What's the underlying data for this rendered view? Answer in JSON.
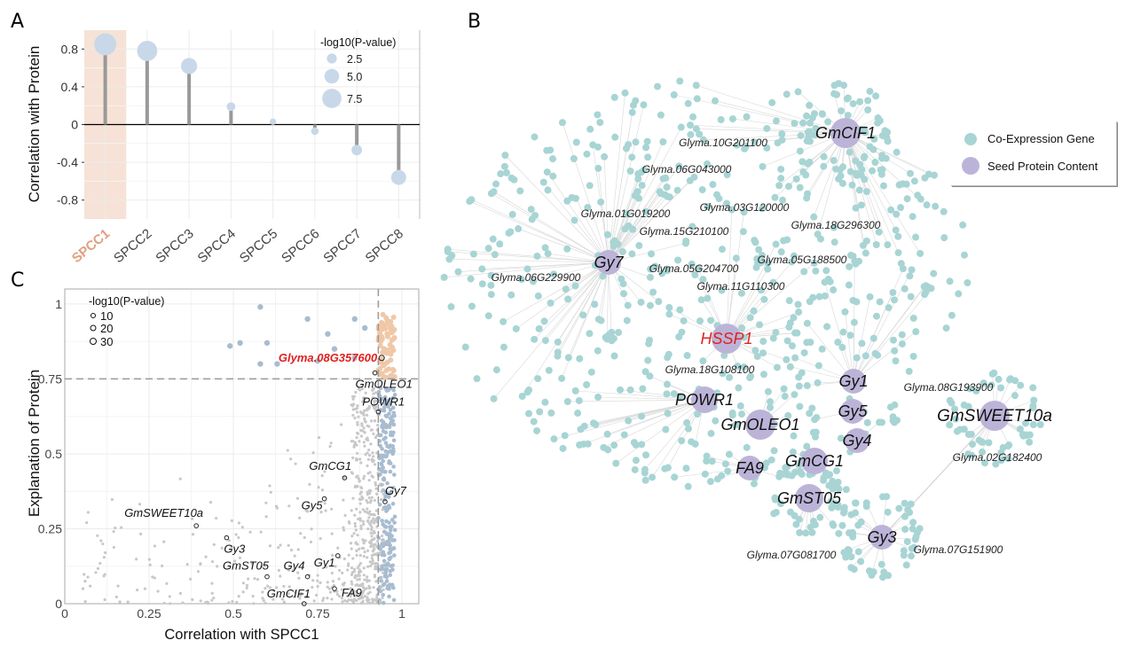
{
  "panels": {
    "a": "A",
    "b": "B",
    "c": "C"
  },
  "chart_data": [
    {
      "type": "lollipop",
      "panel": "A",
      "ylabel": "Correlation with Protein",
      "ylim": [
        -1,
        1
      ],
      "yticks": [
        -0.8,
        -0.4,
        0,
        0.4,
        0.8
      ],
      "ytick_labels": [
        "-0.8",
        "-0.4",
        "0",
        "0.4",
        "0.8"
      ],
      "categories": [
        "SPCC1",
        "SPCC2",
        "SPCC3",
        "SPCC4",
        "SPCC5",
        "SPCC6",
        "SPCC7",
        "SPCC8"
      ],
      "highlight": "SPCC1",
      "values": [
        0.85,
        0.78,
        0.62,
        0.19,
        0.03,
        -0.07,
        -0.27,
        -0.56
      ],
      "neg_log10_p": [
        9.0,
        8.0,
        5.8,
        1.8,
        0.6,
        1.2,
        2.8,
        5.2
      ],
      "legend": {
        "title": "-log10(P-value)",
        "entries": [
          "2.5",
          "5.0",
          "7.5"
        ],
        "values": [
          2.5,
          5.0,
          7.5
        ],
        "placement": "top-right"
      },
      "colors": {
        "point": "#c8d8e8",
        "stem": "#999999",
        "highlight_bg": "#f6e2d6",
        "highlight_text": "#e0a080"
      }
    },
    {
      "type": "scatter",
      "panel": "C",
      "xlabel": "Correlation with SPCC1",
      "ylabel": "Explanation of Protein",
      "xlim": [
        0,
        1.05
      ],
      "ylim": [
        0,
        1.05
      ],
      "xticks": [
        "0",
        "0.25",
        "0.5",
        "0.75",
        "1"
      ],
      "yticks": [
        "0",
        "0.25",
        "0.5",
        "0.75",
        "1"
      ],
      "thresholds": {
        "x": 0.93,
        "y": 0.75
      },
      "legend": {
        "title": "-log10(P-value)",
        "entries": [
          "10",
          "20",
          "30"
        ],
        "placement": "top-left"
      },
      "labeled_points": [
        {
          "label": "Glyma.08G357600",
          "x": 0.94,
          "y": 0.82,
          "highlight": true
        },
        {
          "label": "GmOLEO1",
          "x": 0.92,
          "y": 0.77
        },
        {
          "label": "POWR1",
          "x": 0.93,
          "y": 0.64
        },
        {
          "label": "GmCG1",
          "x": 0.83,
          "y": 0.42
        },
        {
          "label": "Gy7",
          "x": 0.95,
          "y": 0.34
        },
        {
          "label": "Gy5",
          "x": 0.77,
          "y": 0.35
        },
        {
          "label": "GmSWEET10a",
          "x": 0.39,
          "y": 0.26
        },
        {
          "label": "Gy3",
          "x": 0.48,
          "y": 0.22
        },
        {
          "label": "Gy1",
          "x": 0.81,
          "y": 0.16
        },
        {
          "label": "GmST05",
          "x": 0.6,
          "y": 0.09
        },
        {
          "label": "Gy4",
          "x": 0.72,
          "y": 0.09
        },
        {
          "label": "FA9",
          "x": 0.8,
          "y": 0.05
        },
        {
          "label": "GmCIF1",
          "x": 0.71,
          "y": 0.0
        }
      ],
      "colors": {
        "background": "#c8c8c8",
        "mid": "#a8bcd0",
        "top": "#f0c8a8",
        "highlight_label": "#e02020"
      }
    },
    {
      "type": "network",
      "panel": "B",
      "legend": {
        "entries": [
          "Co-Expression Gene",
          "Seed Protein Content"
        ],
        "placement": "top-right"
      },
      "colors": {
        "coexp": "#a8d4d4",
        "seed": "#bcb4d8",
        "edge": "#d8d8d8",
        "hssp": "#e02020"
      },
      "hubs": [
        "GmCIF1",
        "Gy7",
        "HSSP1",
        "POWR1",
        "GmOLEO1",
        "FA9",
        "GmCG1",
        "Gy1",
        "Gy5",
        "Gy4",
        "GmST05",
        "Gy3",
        "GmSWEET10a"
      ],
      "gene_labels": [
        "Glyma.10G201100",
        "Glyma.06G043000",
        "Glyma.01G019200",
        "Glyma.03G120000",
        "Glyma.15G210100",
        "Glyma.18G296300",
        "Glyma.05G188500",
        "Glyma.05G204700",
        "Glyma.06G229900",
        "Glyma.11G110300",
        "Glyma.18G108100",
        "Glyma.08G193900",
        "Glyma.02G182400",
        "Glyma.07G081700",
        "Glyma.07G151900"
      ]
    }
  ]
}
